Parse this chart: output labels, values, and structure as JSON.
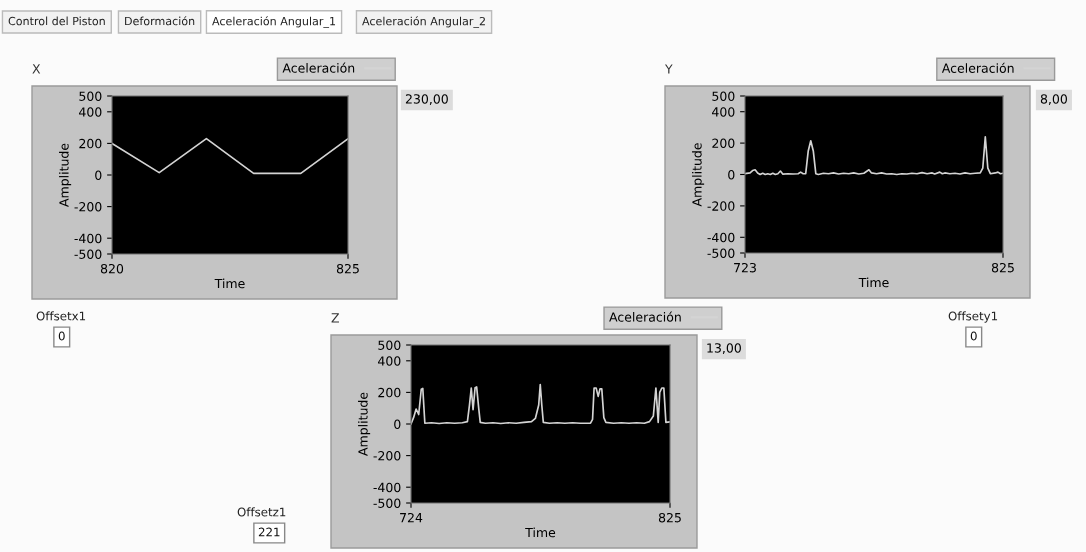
{
  "chart_data": [
    {
      "type": "line",
      "title": "X",
      "xlabel": "Time",
      "ylabel": "Amplitude",
      "legend": "top right",
      "grid": false,
      "xlim": [
        820,
        825
      ],
      "xticks": [
        820,
        825
      ],
      "ylim": [
        -500,
        500
      ],
      "yticks": [
        -500,
        -400,
        -200,
        0,
        200,
        400,
        500
      ],
      "annotations": [
        "230,00"
      ],
      "series": [
        {
          "name": "Aceleración",
          "color": "#d4d4d4",
          "x": [
            820,
            821,
            822,
            823,
            824,
            825
          ],
          "values": [
            200,
            15,
            230,
            10,
            10,
            230
          ]
        }
      ]
    },
    {
      "type": "line",
      "title": "Y",
      "xlabel": "Time",
      "ylabel": "Amplitude",
      "legend": "top right",
      "grid": false,
      "xlim": [
        723,
        825
      ],
      "xticks": [
        723,
        825
      ],
      "ylim": [
        -500,
        500
      ],
      "yticks": [
        -500,
        -400,
        -200,
        0,
        200,
        400,
        500
      ],
      "annotations": [
        "8,00"
      ],
      "series": [
        {
          "name": "Aceleración",
          "color": "#d4d4d4",
          "x": [
            723,
            725,
            726,
            727,
            728,
            729,
            730,
            731,
            732,
            733,
            734,
            735,
            736,
            737,
            738,
            740,
            742,
            744,
            745,
            746,
            747,
            748,
            749,
            750,
            751,
            752,
            754,
            756,
            758,
            760,
            762,
            764,
            766,
            768,
            770,
            772,
            773,
            775,
            777,
            779,
            781,
            783,
            785,
            787,
            789,
            791,
            793,
            795,
            797,
            798,
            800,
            801,
            802,
            804,
            806,
            808,
            810,
            812,
            814,
            816,
            817,
            818,
            819,
            820,
            822,
            823,
            824,
            825
          ],
          "values": [
            5,
            10,
            25,
            30,
            10,
            0,
            8,
            0,
            5,
            0,
            8,
            0,
            5,
            22,
            2,
            5,
            3,
            5,
            15,
            5,
            5,
            150,
            215,
            150,
            5,
            0,
            8,
            5,
            10,
            3,
            8,
            5,
            10,
            3,
            8,
            30,
            10,
            5,
            10,
            3,
            5,
            0,
            5,
            3,
            8,
            5,
            12,
            5,
            10,
            3,
            15,
            5,
            10,
            5,
            8,
            3,
            10,
            5,
            8,
            10,
            40,
            240,
            40,
            5,
            10,
            15,
            5,
            8
          ]
        }
      ]
    },
    {
      "type": "line",
      "title": "Z",
      "xlabel": "Time",
      "ylabel": "Amplitude",
      "legend": "top right",
      "grid": false,
      "xlim": [
        724,
        825
      ],
      "xticks": [
        724,
        825
      ],
      "ylim": [
        -500,
        500
      ],
      "yticks": [
        -500,
        -400,
        -200,
        0,
        200,
        400,
        500
      ],
      "annotations": [
        "13,00"
      ],
      "series": [
        {
          "name": "Aceleración",
          "color": "#d4d4d4",
          "x": [
            724,
            725,
            726,
            727,
            728,
            728.6,
            729.4,
            732,
            735,
            738,
            741,
            744,
            746,
            746.8,
            747.5,
            748.2,
            749,
            749.6,
            750.4,
            751,
            753,
            756,
            759,
            762,
            765,
            768,
            771,
            772.5,
            773.8,
            774.4,
            775,
            775.6,
            778,
            781,
            784,
            787,
            790,
            794,
            794.8,
            795.4,
            796.2,
            797,
            797.7,
            798.4,
            799.2,
            800,
            803,
            806,
            809,
            812,
            815,
            817,
            818.5,
            819.5,
            820.4,
            821,
            821.8,
            822.6,
            823.4,
            825
          ],
          "values": [
            0,
            40,
            95,
            60,
            220,
            225,
            5,
            8,
            3,
            8,
            5,
            8,
            15,
            120,
            228,
            90,
            230,
            235,
            100,
            10,
            5,
            8,
            3,
            8,
            5,
            10,
            15,
            35,
            120,
            250,
            120,
            10,
            5,
            8,
            5,
            8,
            5,
            5,
            30,
            228,
            228,
            175,
            222,
            222,
            40,
            10,
            5,
            8,
            5,
            8,
            5,
            15,
            50,
            228,
            10,
            200,
            228,
            228,
            10,
            13
          ]
        }
      ]
    },
    {
      "type": "other",
      "annotations": [
        "Control del Piston",
        "Deformación",
        "Aceleración Angular_1",
        "Aceleración Angular_2",
        "Offsetx1",
        "0",
        "Offsety1",
        "0",
        "Offsetz1",
        "221"
      ]
    }
  ]
}
